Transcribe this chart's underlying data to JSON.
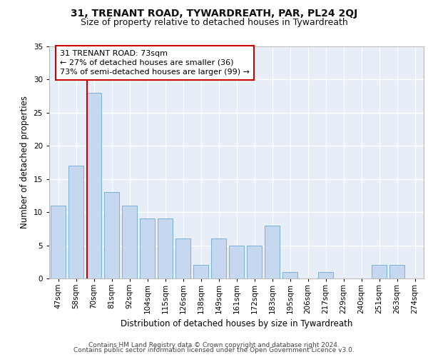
{
  "title1": "31, TRENANT ROAD, TYWARDREATH, PAR, PL24 2QJ",
  "title2": "Size of property relative to detached houses in Tywardreath",
  "xlabel": "Distribution of detached houses by size in Tywardreath",
  "ylabel": "Number of detached properties",
  "categories": [
    "47sqm",
    "58sqm",
    "70sqm",
    "81sqm",
    "92sqm",
    "104sqm",
    "115sqm",
    "126sqm",
    "138sqm",
    "149sqm",
    "161sqm",
    "172sqm",
    "183sqm",
    "195sqm",
    "206sqm",
    "217sqm",
    "229sqm",
    "240sqm",
    "251sqm",
    "263sqm",
    "274sqm"
  ],
  "values": [
    11,
    17,
    28,
    13,
    11,
    9,
    9,
    6,
    2,
    6,
    5,
    5,
    8,
    1,
    0,
    1,
    0,
    0,
    2,
    2,
    0
  ],
  "bar_color": "#c5d8f0",
  "bar_edge_color": "#7bafd4",
  "vline_color": "#cc0000",
  "annotation_text": "31 TRENANT ROAD: 73sqm\n← 27% of detached houses are smaller (36)\n73% of semi-detached houses are larger (99) →",
  "annotation_box_color": "#ffffff",
  "annotation_box_edge": "#cc0000",
  "ylim": [
    0,
    35
  ],
  "yticks": [
    0,
    5,
    10,
    15,
    20,
    25,
    30,
    35
  ],
  "background_color": "#e8eef8",
  "footer_line1": "Contains HM Land Registry data © Crown copyright and database right 2024.",
  "footer_line2": "Contains public sector information licensed under the Open Government Licence v3.0.",
  "title1_fontsize": 10,
  "title2_fontsize": 9,
  "xlabel_fontsize": 8.5,
  "ylabel_fontsize": 8.5,
  "tick_fontsize": 7.5,
  "annotation_fontsize": 8,
  "footer_fontsize": 6.5
}
